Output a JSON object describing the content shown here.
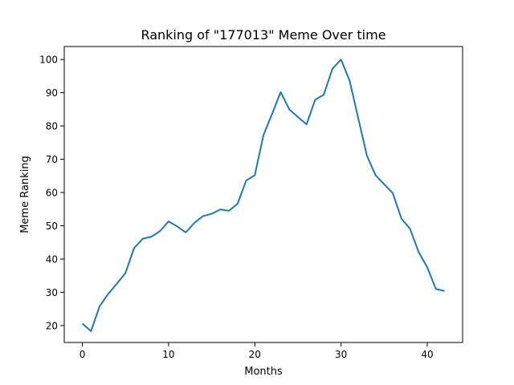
{
  "chart_data": {
    "type": "line",
    "title": "Ranking of \"177013\" Meme Over time",
    "xlabel": "Months",
    "ylabel": "Meme Ranking",
    "xlim": [
      -2.1,
      44.1
    ],
    "ylim": [
      14.9,
      103.9
    ],
    "xticks": [
      0,
      10,
      20,
      30,
      40
    ],
    "yticks": [
      20,
      30,
      40,
      50,
      60,
      70,
      80,
      90,
      100
    ],
    "grid": false,
    "line_color": "#1f77b4",
    "series": [
      {
        "x": [
          0,
          1,
          2,
          3,
          4,
          5,
          6,
          7,
          8,
          9,
          10,
          11,
          12,
          13,
          14,
          15,
          16,
          17,
          18,
          19,
          20,
          21,
          22,
          23,
          24,
          25,
          26,
          27,
          28,
          29,
          30,
          31,
          32,
          33,
          34,
          35,
          36,
          37,
          38,
          39,
          40,
          41,
          42
        ],
        "values": [
          20.6,
          18.3,
          25.8,
          29.5,
          32.6,
          35.8,
          43.3,
          46.1,
          46.7,
          48.4,
          51.3,
          49.8,
          48.0,
          50.9,
          52.9,
          53.6,
          54.9,
          54.5,
          56.6,
          63.6,
          65.2,
          77.2,
          83.6,
          90.2,
          85.0,
          82.7,
          80.5,
          87.9,
          89.4,
          97.2,
          100.0,
          93.6,
          82.3,
          71.1,
          65.2,
          62.5,
          59.8,
          52.2,
          49.1,
          42.1,
          37.5,
          31.0,
          30.4
        ]
      }
    ]
  }
}
